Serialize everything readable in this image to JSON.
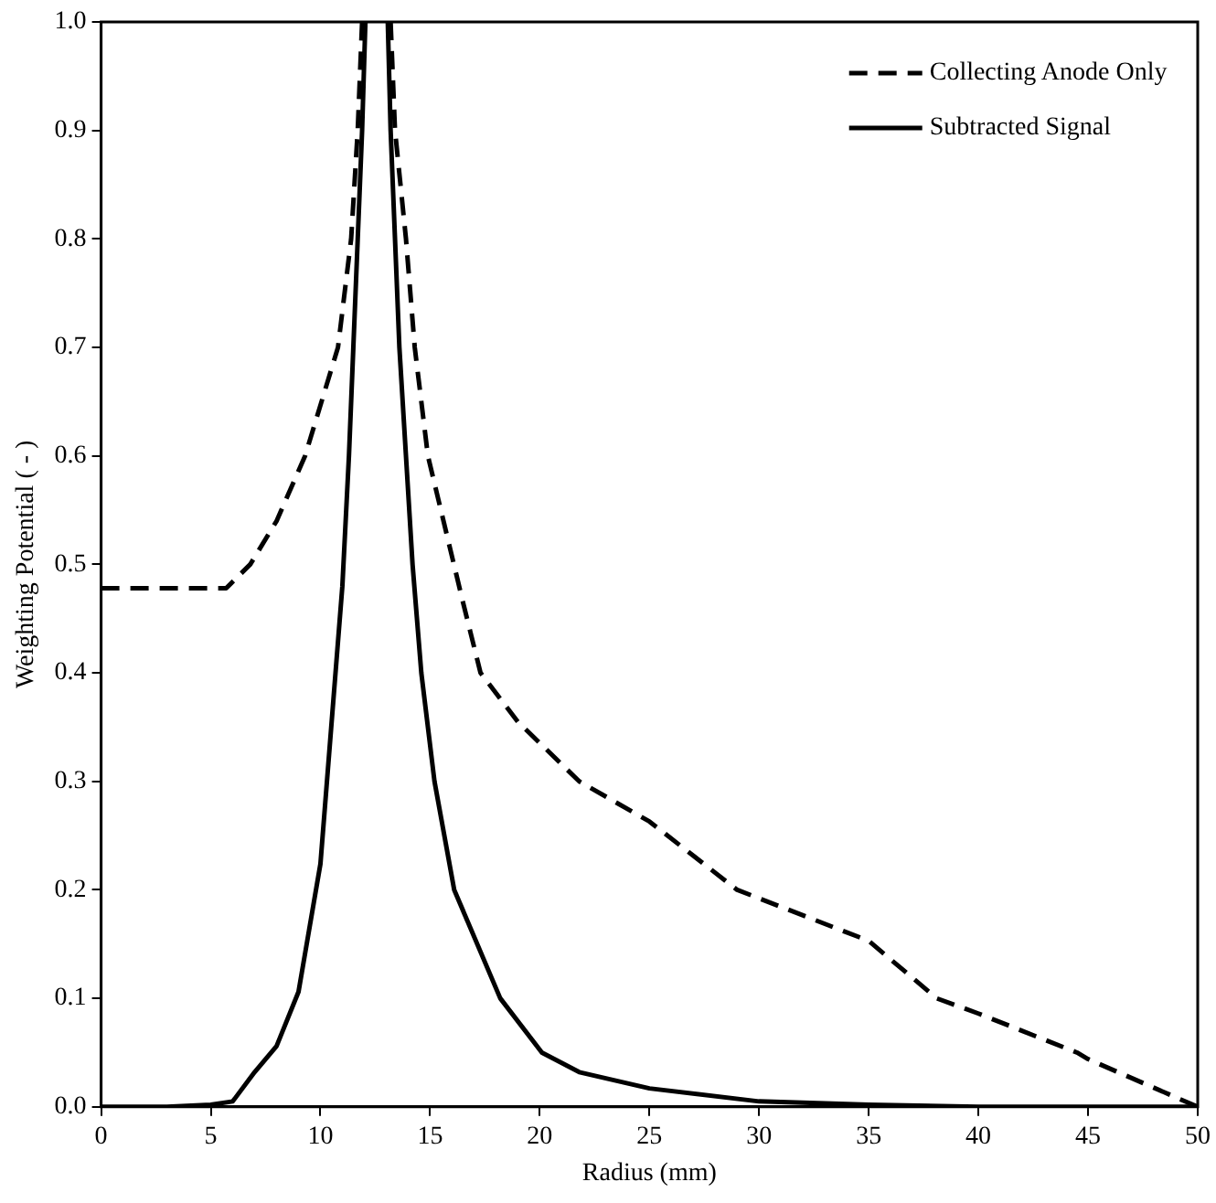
{
  "chart_data": {
    "type": "line",
    "xlabel": "Radius (mm)",
    "ylabel": "Weighting Potential ( - )",
    "xlim": [
      0,
      50
    ],
    "xticks": [
      0,
      5,
      10,
      15,
      20,
      25,
      30,
      35,
      40,
      45,
      50
    ],
    "ylim": [
      0,
      1
    ],
    "yticks": [
      {
        "value": 0,
        "label": "0.0"
      },
      0.1,
      0.2,
      0.3,
      0.4,
      0.5,
      0.6,
      0.7,
      0.8,
      0.9,
      {
        "value": 1,
        "label": "1.0"
      }
    ],
    "grid": false,
    "legend": "top right",
    "marker": "none",
    "series": [
      {
        "name": "Collecting Anode Only",
        "color": "#000000",
        "line_style": "dashed",
        "x": [
          0,
          3,
          5.7,
          6.8,
          8,
          9.3,
          10.8,
          11.4,
          11.7,
          11.9,
          null,
          13.2,
          13.4,
          13.9,
          14.3,
          14.9,
          16.5,
          17.3,
          19,
          21.8,
          25,
          29,
          35,
          38.1,
          40,
          44.5,
          45,
          50
        ],
        "values": [
          0.478,
          0.478,
          0.478,
          0.5,
          0.54,
          0.6,
          0.7,
          0.8,
          0.9,
          1.0,
          null,
          1.0,
          0.9,
          0.8,
          0.7,
          0.6,
          0.465,
          0.4,
          0.355,
          0.3,
          0.263,
          0.2,
          0.153,
          0.1,
          0.086,
          0.05,
          0.044,
          0
        ]
      },
      {
        "name": "Subtracted Signal",
        "color": "#000000",
        "line_style": "solid",
        "x": [
          0,
          3,
          5,
          6,
          7,
          8,
          9,
          10,
          11,
          11.3,
          11.5,
          11.7,
          11.9,
          12.05,
          null,
          13.07,
          13.2,
          13.6,
          14.2,
          14.6,
          15.2,
          16.1,
          18.2,
          20.1,
          21.8,
          25,
          30,
          35,
          40,
          50
        ],
        "values": [
          0,
          0,
          0.002,
          0.005,
          0.032,
          0.056,
          0.106,
          0.224,
          0.48,
          0.6,
          0.7,
          0.8,
          0.9,
          1.0,
          null,
          1.0,
          0.9,
          0.7,
          0.5,
          0.4,
          0.3,
          0.2,
          0.1,
          0.05,
          0.032,
          0.017,
          0.005,
          0.002,
          0,
          0
        ]
      }
    ]
  }
}
